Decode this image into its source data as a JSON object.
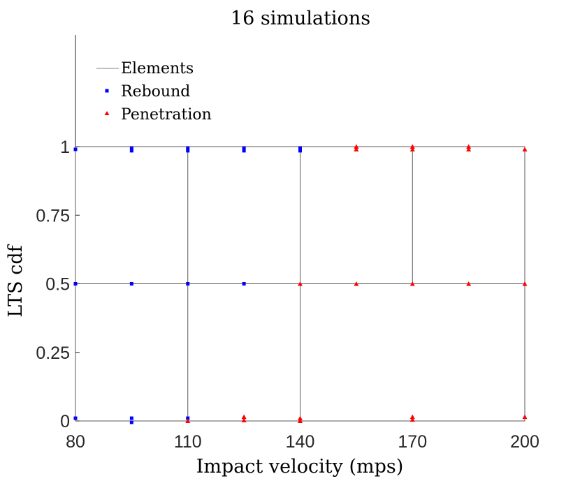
{
  "chart_data": {
    "type": "scatter",
    "title": "16 simulations",
    "xlabel": "Impact velocity (mps)",
    "ylabel": "LTS cdf",
    "xlim": [
      80,
      200
    ],
    "ylim": [
      0,
      1.5
    ],
    "xticks": [
      80,
      110,
      140,
      170,
      200
    ],
    "yticks": [
      0,
      0.25,
      0.5,
      0.75,
      1
    ],
    "xtick_labels": [
      "80",
      "110",
      "140",
      "170",
      "200"
    ],
    "ytick_labels": [
      "0",
      "0.25",
      "0.5",
      "0.75",
      "1"
    ],
    "grid": false,
    "legend_position": "top-left",
    "elements": {
      "name": "Elements",
      "color": "#808080",
      "horizontal_lines": [
        {
          "y": 0,
          "x_from": 80,
          "x_to": 200
        },
        {
          "y": 0.5,
          "x_from": 80,
          "x_to": 200
        },
        {
          "y": 1,
          "x_from": 80,
          "x_to": 200
        }
      ],
      "vertical_lines": [
        {
          "x": 80,
          "y_from": 0,
          "y_to": 1
        },
        {
          "x": 110,
          "y_from": 0,
          "y_to": 1
        },
        {
          "x": 140,
          "y_from": 0,
          "y_to": 1
        },
        {
          "x": 170,
          "y_from": 0.5,
          "y_to": 1
        },
        {
          "x": 200,
          "y_from": 0,
          "y_to": 1
        }
      ]
    },
    "series": [
      {
        "name": "Rebound",
        "marker": "square",
        "color": "#0000ff",
        "points": [
          {
            "x": 80,
            "y": 0.99
          },
          {
            "x": 95,
            "y": 0.995
          },
          {
            "x": 95,
            "y": 0.985
          },
          {
            "x": 110,
            "y": 0.995
          },
          {
            "x": 110,
            "y": 0.985
          },
          {
            "x": 125,
            "y": 0.995
          },
          {
            "x": 125,
            "y": 0.985
          },
          {
            "x": 140,
            "y": 0.995
          },
          {
            "x": 140,
            "y": 0.985
          },
          {
            "x": 80,
            "y": 0.5
          },
          {
            "x": 95,
            "y": 0.5
          },
          {
            "x": 110,
            "y": 0.5
          },
          {
            "x": 125,
            "y": 0.5
          },
          {
            "x": 80,
            "y": 0.01
          },
          {
            "x": 95,
            "y": 0.01
          },
          {
            "x": 95,
            "y": -0.005
          },
          {
            "x": 110,
            "y": 0.01
          }
        ]
      },
      {
        "name": "Penetration",
        "marker": "triangle",
        "color": "#ff0000",
        "points": [
          {
            "x": 155,
            "y": 1.0
          },
          {
            "x": 155,
            "y": 0.99
          },
          {
            "x": 170,
            "y": 1.0
          },
          {
            "x": 170,
            "y": 0.99
          },
          {
            "x": 185,
            "y": 1.0
          },
          {
            "x": 185,
            "y": 0.99
          },
          {
            "x": 200,
            "y": 0.99
          },
          {
            "x": 140,
            "y": 0.5
          },
          {
            "x": 155,
            "y": 0.5
          },
          {
            "x": 170,
            "y": 0.5
          },
          {
            "x": 185,
            "y": 0.5
          },
          {
            "x": 200,
            "y": 0.5
          },
          {
            "x": 110,
            "y": 0.0
          },
          {
            "x": 125,
            "y": 0.015
          },
          {
            "x": 125,
            "y": 0.003
          },
          {
            "x": 140,
            "y": 0.01
          },
          {
            "x": 140,
            "y": 0.0
          },
          {
            "x": 170,
            "y": 0.015
          },
          {
            "x": 170,
            "y": 0.005
          },
          {
            "x": 200,
            "y": 0.015
          }
        ]
      }
    ]
  }
}
